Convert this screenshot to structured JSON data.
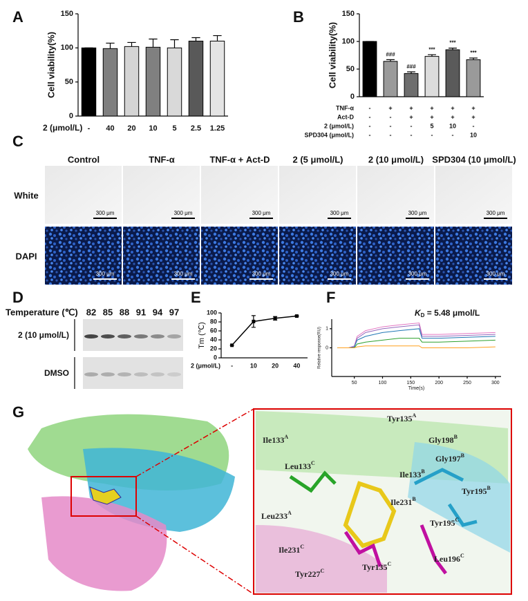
{
  "chart_data": [
    {
      "type": "bar",
      "panel": "A",
      "ylabel": "Cell viability(%)",
      "xlabel": "2 (μmol/L)",
      "categories": [
        "-",
        "40",
        "20",
        "10",
        "5",
        "2.5",
        "1.25"
      ],
      "values": [
        100,
        99,
        102,
        101,
        100,
        110,
        110
      ],
      "errors": [
        0,
        8,
        6,
        12,
        12,
        5,
        8
      ],
      "colors": [
        "#000000",
        "#7f7f7f",
        "#d4d4d4",
        "#808080",
        "#d9d9d9",
        "#595959",
        "#e4e4e4"
      ],
      "ylim": [
        0,
        150
      ],
      "yticks": [
        0,
        50,
        100,
        150
      ]
    },
    {
      "type": "bar",
      "panel": "B",
      "ylabel": "Cell viability(%)",
      "categories": [
        null,
        null,
        null,
        null,
        null,
        null
      ],
      "values": [
        100,
        64,
        42,
        73,
        85,
        67
      ],
      "errors": [
        0,
        3,
        3,
        3,
        3,
        3
      ],
      "significance": [
        null,
        "###",
        "###",
        "***",
        "***",
        "***"
      ],
      "colors": [
        "#000000",
        "#9a9a9a",
        "#6e6e6e",
        "#dcdcdc",
        "#5a5a5a",
        "#9a9a9a"
      ],
      "ylim": [
        0,
        150
      ],
      "yticks": [
        0,
        50,
        100,
        150
      ],
      "rows": [
        {
          "label": "TNF-α",
          "cells": [
            "-",
            "+",
            "+",
            "+",
            "+",
            "+"
          ]
        },
        {
          "label": "Act-D",
          "cells": [
            "-",
            "-",
            "+",
            "+",
            "+",
            "+"
          ]
        },
        {
          "label": "2 (μmol/L)",
          "cells": [
            "-",
            "-",
            "-",
            "5",
            "10",
            "-"
          ]
        },
        {
          "label": "SPD304 (μmol/L)",
          "cells": [
            "-",
            "-",
            "-",
            "-",
            "-",
            "10"
          ]
        }
      ]
    },
    {
      "type": "line",
      "panel": "E",
      "ylabel": "Tm (℃)",
      "xlabel": "2 (μmol/L)",
      "categories": [
        "-",
        "10",
        "20",
        "40"
      ],
      "values": [
        28,
        81,
        88,
        93
      ],
      "errors": [
        0,
        13,
        4,
        1
      ],
      "color": "#000000",
      "ylim": [
        0,
        100
      ],
      "yticks": [
        0,
        20,
        40,
        60,
        80,
        100
      ]
    },
    {
      "type": "sensorgram",
      "panel": "F",
      "title": "K",
      "title_sub": "D",
      "title_rest": " = 5.48 μmol/L",
      "xlabel": "Time(s)",
      "ylabel": "Relative response(RU)",
      "x": [
        20,
        40,
        50,
        55,
        70,
        100,
        130,
        165,
        170,
        200,
        250,
        300
      ],
      "series": [
        {
          "color": "#e377c2",
          "values": [
            0,
            0,
            0.1,
            0.6,
            0.9,
            1.1,
            1.2,
            1.3,
            0.7,
            0.7,
            0.75,
            0.8
          ]
        },
        {
          "color": "#9467bd",
          "values": [
            0,
            0,
            0.05,
            0.5,
            0.8,
            1.0,
            1.1,
            1.2,
            0.6,
            0.6,
            0.65,
            0.7
          ]
        },
        {
          "color": "#1f77b4",
          "values": [
            0,
            0,
            0.05,
            0.4,
            0.6,
            0.8,
            0.9,
            1.0,
            0.5,
            0.5,
            0.55,
            0.6
          ]
        },
        {
          "color": "#2ca02c",
          "values": [
            0,
            0,
            0,
            0.2,
            0.3,
            0.4,
            0.5,
            0.5,
            0.3,
            0.3,
            0.35,
            0.4
          ]
        },
        {
          "color": "#ff9f1c",
          "values": [
            0,
            0,
            0,
            0.05,
            0.1,
            0.1,
            0.1,
            0.1,
            0,
            0,
            0,
            0.05
          ]
        }
      ],
      "xlim": [
        10,
        310
      ],
      "xticks": [
        50,
        100,
        150,
        200,
        250,
        300
      ],
      "ylim": [
        -1.5,
        1.5
      ],
      "yticks": [
        0,
        1
      ]
    }
  ],
  "panel_c": {
    "panel": "C",
    "columns": [
      "Control",
      "TNF-α",
      "TNF-α + Act-D",
      "2 (5 μmol/L)",
      "2 (10 μmol/L)",
      "SPD304 (10 μmol/L)"
    ],
    "rows": [
      "White",
      "DAPI"
    ],
    "scale_bar": "300 μm"
  },
  "panel_d": {
    "panel": "D",
    "temperature_label": "Temperature (℃)",
    "temperatures": [
      "82",
      "85",
      "88",
      "91",
      "94",
      "97"
    ],
    "rows": [
      "2 (10 μmol/L)",
      "DMSO"
    ]
  },
  "panel_g": {
    "panel": "G",
    "residues": [
      {
        "name": "Tyr135",
        "sup": "A"
      },
      {
        "name": "Ile133",
        "sup": "A"
      },
      {
        "name": "Gly198",
        "sup": "B"
      },
      {
        "name": "Gly197",
        "sup": "B"
      },
      {
        "name": "Ile133",
        "sup": "B"
      },
      {
        "name": "Leu133",
        "sup": "C"
      },
      {
        "name": "Tyr195",
        "sup": "B"
      },
      {
        "name": "Ile231",
        "sup": "B"
      },
      {
        "name": "Leu233",
        "sup": "A"
      },
      {
        "name": "Tyr195",
        "sup": "C"
      },
      {
        "name": "Ile231",
        "sup": "C"
      },
      {
        "name": "Leu196",
        "sup": "C"
      },
      {
        "name": "Tyr227",
        "sup": "C"
      },
      {
        "name": "Tyr135",
        "sup": "C"
      }
    ]
  }
}
